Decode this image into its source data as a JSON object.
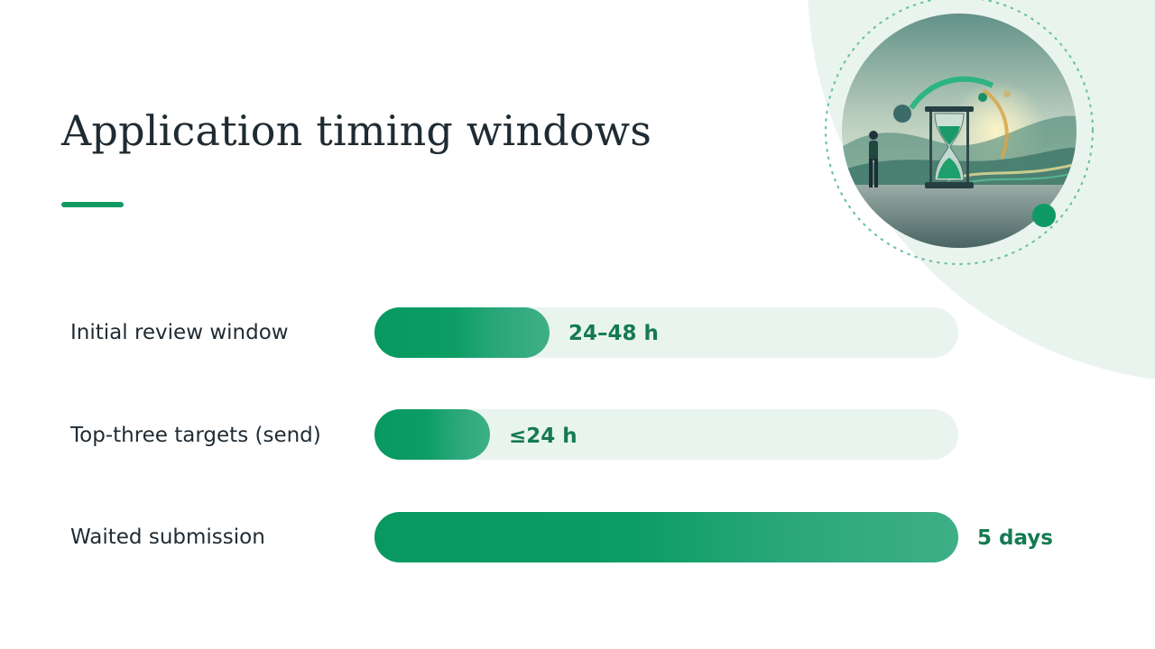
{
  "slide": {
    "title": "Application timing windows",
    "accent_color": "#0f9a64",
    "illustration_icon": "hourglass-illustration"
  },
  "chart_data": {
    "type": "bar",
    "orientation": "horizontal",
    "title": "Application timing windows",
    "categories": [
      "Initial review window",
      "Top-three targets (send)",
      "Waited submission"
    ],
    "value_labels": [
      "24–48 h",
      "≤24 h",
      "5 days"
    ],
    "values_hours": [
      36,
      24,
      120
    ],
    "max_hours": 120,
    "colors": {
      "fill_start": "#07995f",
      "fill_end": "#3eaf86",
      "track": "#e9f4ef",
      "value_text": "#157a52"
    }
  }
}
